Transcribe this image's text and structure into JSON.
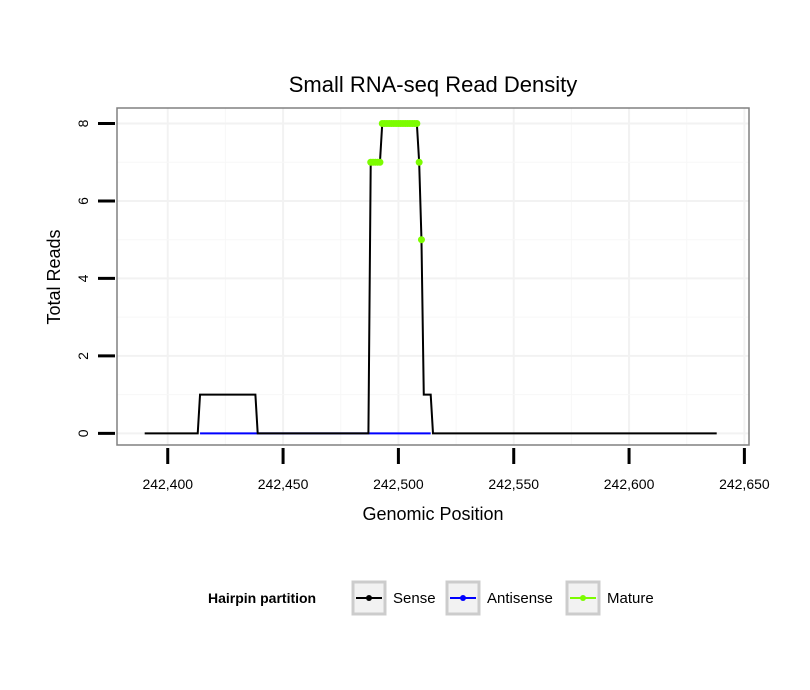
{
  "chart_data": {
    "type": "line",
    "title": "Small RNA-seq Read Density",
    "xlabel": "Genomic Position",
    "ylabel": "Total Reads",
    "xlim": [
      242378,
      242652
    ],
    "ylim": [
      -0.3,
      8.4
    ],
    "xticks": [
      242400,
      242450,
      242500,
      242550,
      242600,
      242650
    ],
    "xtick_labels": [
      "242,400",
      "242,450",
      "242,500",
      "242,550",
      "242,600",
      "242,650"
    ],
    "yticks": [
      0,
      2,
      4,
      6,
      8
    ],
    "ytick_labels": [
      "0",
      "2",
      "4",
      "6",
      "8"
    ],
    "grid": true,
    "legend": {
      "title": "Hairpin partition",
      "position": "bottom",
      "entries": [
        "Sense",
        "Antisense",
        "Mature"
      ]
    },
    "series": [
      {
        "name": "Sense",
        "color": "#000000",
        "points": [
          [
            242390,
            0
          ],
          [
            242413,
            0
          ],
          [
            242414,
            1
          ],
          [
            242438,
            1
          ],
          [
            242439,
            0
          ],
          [
            242487,
            0
          ],
          [
            242488,
            7
          ],
          [
            242492,
            7
          ],
          [
            242493,
            8
          ],
          [
            242508,
            8
          ],
          [
            242509,
            7
          ],
          [
            242510,
            5
          ],
          [
            242511,
            1
          ],
          [
            242514,
            1
          ],
          [
            242515,
            0
          ],
          [
            242638,
            0
          ]
        ]
      },
      {
        "name": "Antisense",
        "color": "#0000ff",
        "points": [
          [
            242414,
            0
          ],
          [
            242438,
            0
          ],
          [
            242488,
            0
          ],
          [
            242514,
            0
          ]
        ]
      },
      {
        "name": "Mature",
        "color": "#7cfc00",
        "markers_only": true,
        "points": [
          [
            242488,
            7
          ],
          [
            242489,
            7
          ],
          [
            242490,
            7
          ],
          [
            242491,
            7
          ],
          [
            242492,
            7
          ],
          [
            242493,
            8
          ],
          [
            242494,
            8
          ],
          [
            242495,
            8
          ],
          [
            242496,
            8
          ],
          [
            242497,
            8
          ],
          [
            242498,
            8
          ],
          [
            242499,
            8
          ],
          [
            242500,
            8
          ],
          [
            242501,
            8
          ],
          [
            242502,
            8
          ],
          [
            242503,
            8
          ],
          [
            242504,
            8
          ],
          [
            242505,
            8
          ],
          [
            242506,
            8
          ],
          [
            242507,
            8
          ],
          [
            242508,
            8
          ],
          [
            242509,
            7
          ],
          [
            242510,
            5
          ]
        ]
      }
    ]
  }
}
